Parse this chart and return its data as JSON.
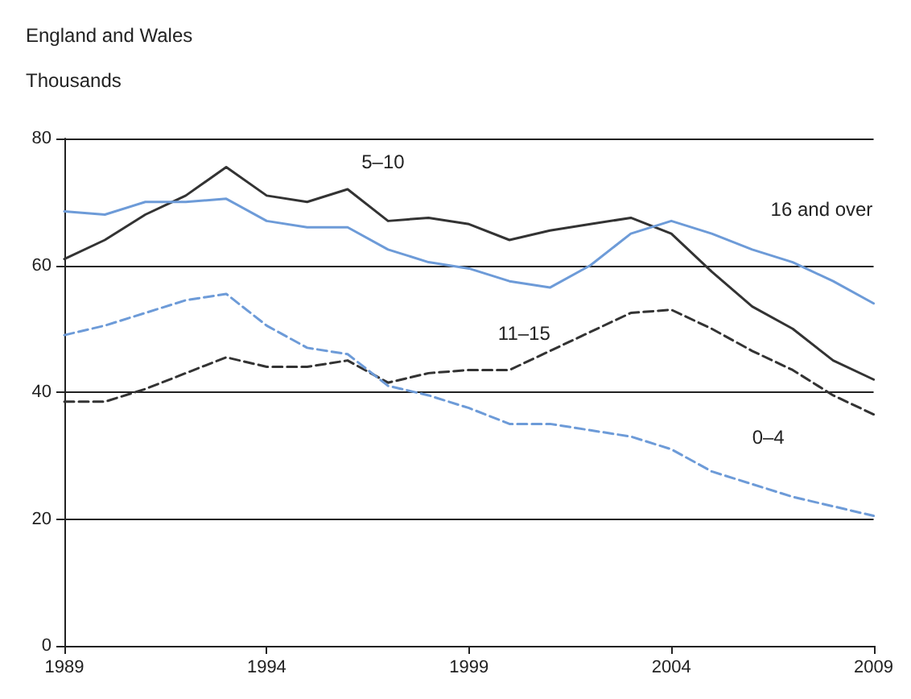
{
  "chart_data": {
    "type": "line",
    "title": "England and Wales",
    "ylabel": "Thousands",
    "x": [
      1989,
      1990,
      1991,
      1992,
      1993,
      1994,
      1995,
      1996,
      1997,
      1998,
      1999,
      2000,
      2001,
      2002,
      2003,
      2004,
      2005,
      2006,
      2007,
      2008,
      2009
    ],
    "series": [
      {
        "name": "5–10",
        "color": "#333333",
        "line_style": "solid",
        "values": [
          61,
          64,
          68,
          71,
          75.5,
          71,
          70,
          72,
          67,
          67.5,
          66.5,
          64,
          65.5,
          66.5,
          67.5,
          65,
          59,
          53.5,
          50,
          45,
          42
        ]
      },
      {
        "name": "16 and over",
        "color": "#6d9bd8",
        "line_style": "solid",
        "values": [
          68.5,
          68,
          70,
          70,
          70.5,
          67,
          66,
          66,
          62.5,
          60.5,
          59.5,
          57.5,
          56.5,
          60,
          65,
          67,
          65,
          62.5,
          60.5,
          57.5,
          54
        ]
      },
      {
        "name": "11–15",
        "color": "#333333",
        "line_style": "dashed",
        "values": [
          38.5,
          38.5,
          40.5,
          43,
          45.5,
          44,
          44,
          45,
          41.5,
          43,
          43.5,
          43.5,
          46.5,
          49.5,
          52.5,
          53,
          50,
          46.5,
          43.5,
          39.5,
          36.5
        ]
      },
      {
        "name": "0–4",
        "color": "#6d9bd8",
        "line_style": "dashed",
        "values": [
          49,
          50.5,
          52.5,
          54.5,
          55.5,
          50.5,
          47,
          46,
          41,
          39.5,
          37.5,
          35,
          35,
          34,
          33,
          31,
          27.5,
          25.5,
          23.5,
          22,
          20.5
        ]
      }
    ],
    "xlim": [
      1989,
      2009
    ],
    "xticks": [
      1989,
      1994,
      1999,
      2004,
      2009
    ],
    "ylim": [
      0,
      80
    ],
    "yticks": [
      0,
      20,
      40,
      60,
      80
    ],
    "grid": "y",
    "marker": "none",
    "legend": false
  }
}
